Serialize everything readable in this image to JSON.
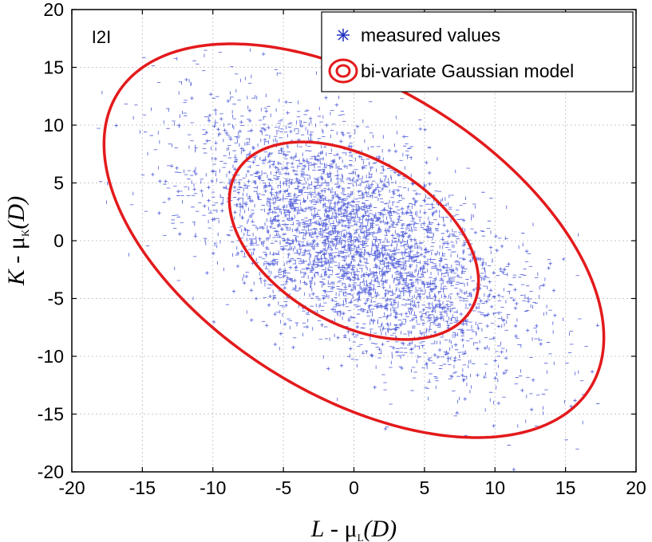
{
  "chart_data": {
    "type": "scatter",
    "panel_label": "I2I",
    "xlabel": {
      "main": "L",
      "sep": " - ",
      "mu": "μ",
      "sub": "L",
      "arg": "(D)"
    },
    "ylabel": {
      "main": "K",
      "sep": " - ",
      "mu": "μ",
      "sub": "K",
      "arg": "(D)"
    },
    "xlim": [
      -20,
      20
    ],
    "ylim": [
      -20,
      20
    ],
    "xticks": [
      -20,
      -15,
      -10,
      -5,
      0,
      5,
      10,
      15,
      20
    ],
    "yticks": [
      -20,
      -15,
      -10,
      -5,
      0,
      5,
      10,
      15,
      20
    ],
    "grid": true,
    "legend": {
      "placement": "top-right",
      "entries": [
        {
          "label": "measured values",
          "marker": "asterisk",
          "color": "#1f2fbf"
        },
        {
          "label": "bi-variate Gaussian model",
          "marker": "ellipse",
          "color": "#e31a1c"
        }
      ]
    },
    "series": [
      {
        "name": "measured values",
        "kind": "points",
        "color": "#2b3bd0",
        "count": 4200,
        "distribution": {
          "mean": [
            0,
            0
          ],
          "std": [
            5.8,
            5.6
          ],
          "correlation": -0.62
        }
      },
      {
        "name": "bi-variate Gaussian model",
        "kind": "ellipses",
        "color": "#e31a1c",
        "center": [
          0,
          0
        ],
        "contours": [
          {
            "label": "inner",
            "major_endpoint": [
              7.6,
              -7.0
            ],
            "minor_endpoint": [
              -4.5,
              -4.9
            ]
          },
          {
            "label": "outer",
            "major_endpoint": [
              15.6,
              -14.4
            ],
            "minor_endpoint": [
              -8.4,
              -9.1
            ]
          }
        ]
      }
    ]
  }
}
